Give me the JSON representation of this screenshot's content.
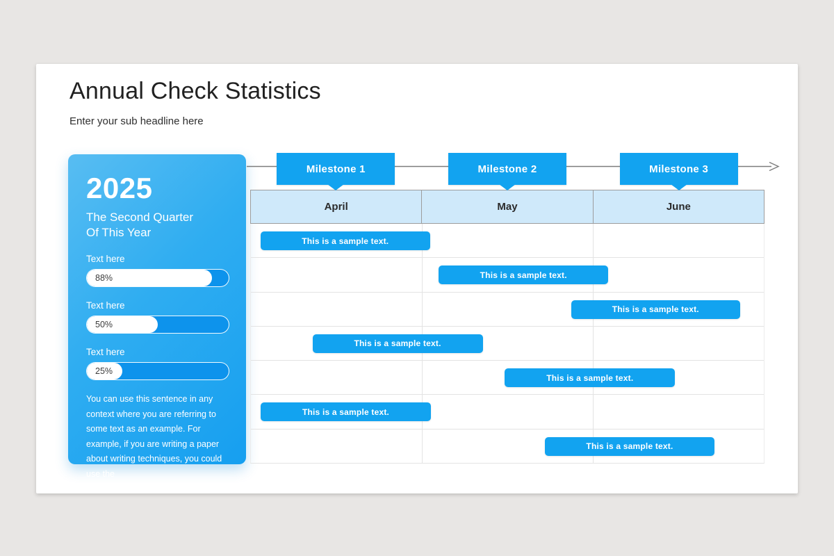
{
  "slide": {
    "title": "Annual Check Statistics",
    "subtitle": "Enter your sub headline here"
  },
  "panel": {
    "year": "2025",
    "subtitle_line1": "The Second Quarter",
    "subtitle_line2": "Of This Year",
    "metrics": [
      {
        "label": "Text here",
        "value": "88%",
        "percent": 88
      },
      {
        "label": "Text here",
        "value": "50%",
        "percent": 50
      },
      {
        "label": "Text here",
        "value": "25%",
        "percent": 25
      }
    ],
    "description": "You can use this sentence in any context where you are referring to some text as an example. For example, if you are writing a paper about writing techniques, you could use the",
    "colors": {
      "gradient_start": "#58bdf2",
      "gradient_end": "#169ff0",
      "track_blue": "#0d93ec"
    }
  },
  "timeline": {
    "milestones": [
      {
        "label": "Milestone 1"
      },
      {
        "label": "Milestone 2"
      },
      {
        "label": "Milestone 3"
      }
    ],
    "arrow_color": "#7c7c7c"
  },
  "gantt": {
    "months": [
      "April",
      "May",
      "June"
    ],
    "header_bg": "#cfe9fa",
    "header_border": "#9c9c9c",
    "grid_line": "#e3e3e3",
    "bar_color": "#12a3f0",
    "rows": [
      {
        "label": "This is a sample text.",
        "left_pct": 1.9,
        "width_pct": 33.0
      },
      {
        "label": "This is a sample text.",
        "left_pct": 36.6,
        "width_pct": 33.1
      },
      {
        "label": "This is a sample text.",
        "left_pct": 62.4,
        "width_pct": 33.0
      },
      {
        "label": "This is a sample text.",
        "left_pct": 12.0,
        "width_pct": 33.2
      },
      {
        "label": "This is a sample text.",
        "left_pct": 49.5,
        "width_pct": 33.2
      },
      {
        "label": "This is a sample text.",
        "left_pct": 1.9,
        "width_pct": 33.2
      },
      {
        "label": "This is a sample text.",
        "left_pct": 57.3,
        "width_pct": 33.1
      }
    ]
  },
  "colors": {
    "page_bg": "#e8e6e4",
    "slide_bg": "#ffffff",
    "accent_blue": "#12a3f0",
    "title_text": "#212121"
  }
}
